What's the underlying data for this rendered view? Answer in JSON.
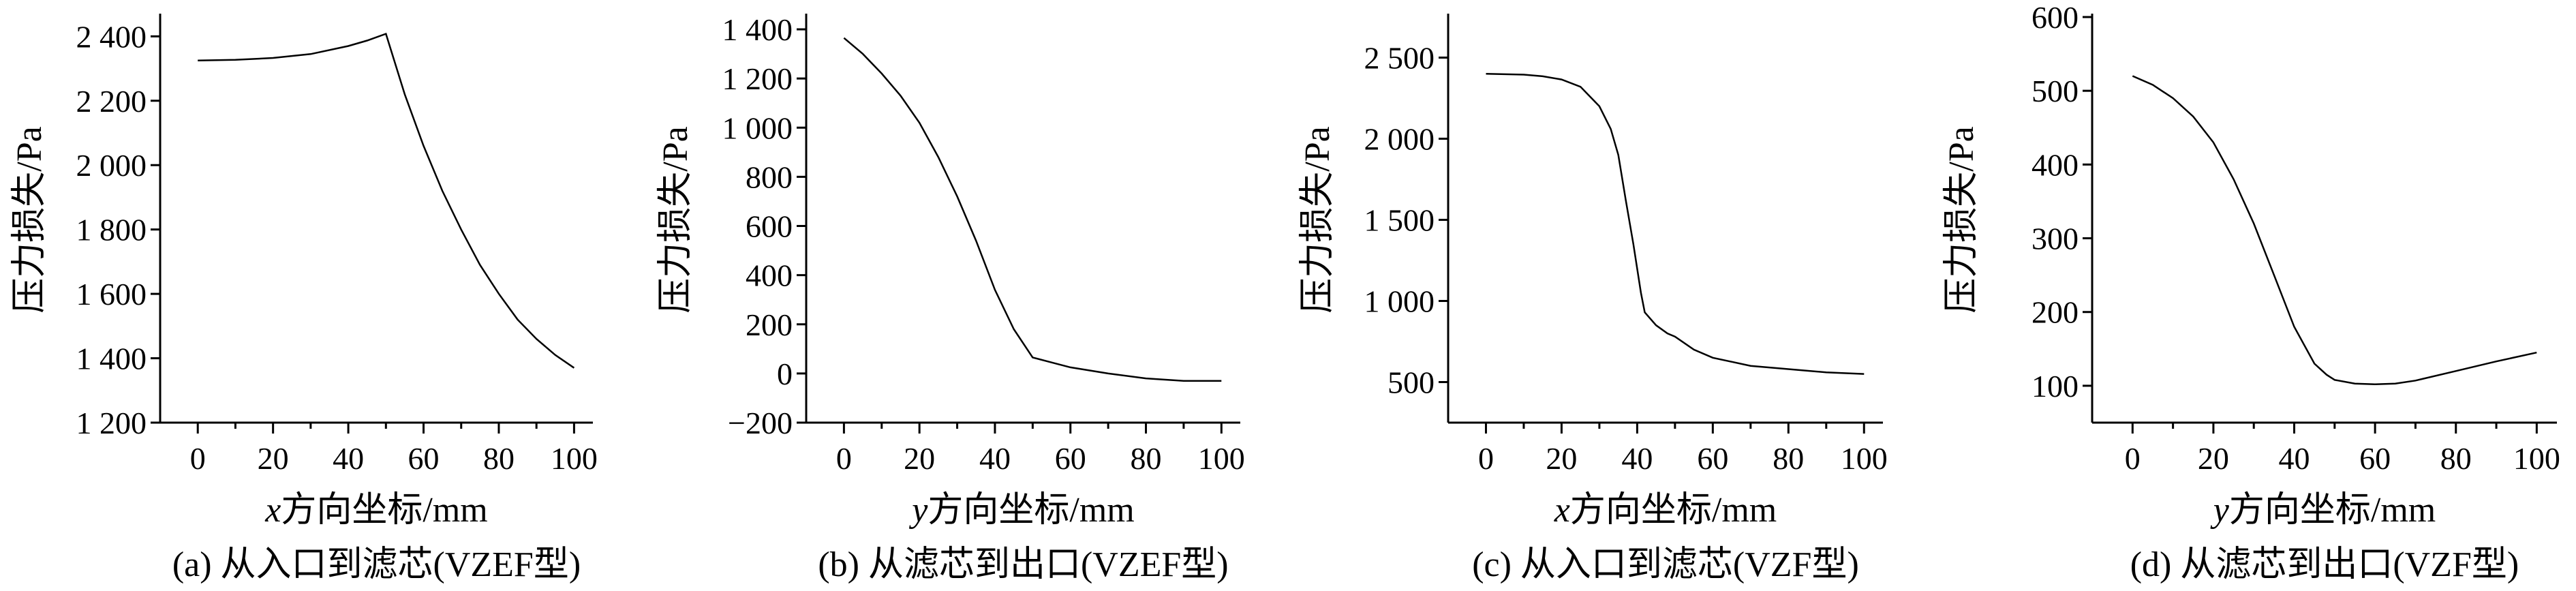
{
  "chart_data": [
    {
      "type": "line",
      "caption": "(a) 从入口到滤芯(VZEF型)",
      "xlabel_var": "x",
      "xlabel_rest": "方向坐标/mm",
      "ylabel": "压力损失/Pa",
      "xlim": [
        -10,
        105
      ],
      "ylim": [
        1200,
        2460
      ],
      "xticks": [
        0,
        20,
        40,
        60,
        80,
        100
      ],
      "yticks": [
        1200,
        1400,
        1600,
        1800,
        2000,
        2200,
        2400
      ],
      "xtick_labels": [
        "0",
        "20",
        "40",
        "60",
        "80",
        "100"
      ],
      "ytick_labels": [
        "1 200",
        "1 400",
        "1 600",
        "1 800",
        "2 000",
        "2 200",
        "2 400"
      ],
      "x": [
        0,
        10,
        20,
        30,
        40,
        45,
        50,
        55,
        60,
        65,
        70,
        75,
        80,
        85,
        90,
        95,
        100
      ],
      "y": [
        2325,
        2327,
        2333,
        2345,
        2370,
        2387,
        2408,
        2220,
        2060,
        1920,
        1800,
        1690,
        1600,
        1520,
        1460,
        1410,
        1370
      ]
    },
    {
      "type": "line",
      "caption": "(b) 从滤芯到出口(VZEF型)",
      "xlabel_var": "y",
      "xlabel_rest": "方向坐标/mm",
      "ylabel": "压力损失/Pa",
      "xlim": [
        -10,
        105
      ],
      "ylim": [
        -200,
        1450
      ],
      "xticks": [
        0,
        20,
        40,
        60,
        80,
        100
      ],
      "yticks": [
        -200,
        0,
        200,
        400,
        600,
        800,
        1000,
        1200,
        1400
      ],
      "xtick_labels": [
        "0",
        "20",
        "40",
        "60",
        "80",
        "100"
      ],
      "ytick_labels": [
        "−200",
        "0",
        "200",
        "400",
        "600",
        "800",
        "1 000",
        "1 200",
        "1 400"
      ],
      "x": [
        0,
        5,
        10,
        15,
        20,
        25,
        30,
        35,
        40,
        45,
        50,
        55,
        60,
        70,
        80,
        90,
        100
      ],
      "y": [
        1365,
        1300,
        1220,
        1130,
        1020,
        880,
        720,
        540,
        340,
        180,
        65,
        45,
        25,
        0,
        -20,
        -30,
        -30
      ]
    },
    {
      "type": "line",
      "caption": "(c) 从入口到滤芯(VZF型)",
      "xlabel_var": "x",
      "xlabel_rest": "方向坐标/mm",
      "ylabel": "压力损失/Pa",
      "xlim": [
        -10,
        105
      ],
      "ylim": [
        250,
        2750
      ],
      "xticks": [
        0,
        20,
        40,
        60,
        80,
        100
      ],
      "yticks": [
        500,
        1000,
        1500,
        2000,
        2500
      ],
      "xtick_labels": [
        "0",
        "20",
        "40",
        "60",
        "80",
        "100"
      ],
      "ytick_labels": [
        "500",
        "1 000",
        "1 500",
        "2 000",
        "2 500"
      ],
      "x": [
        0,
        10,
        15,
        20,
        25,
        30,
        33,
        35,
        37,
        39,
        41,
        42,
        45,
        48,
        50,
        55,
        60,
        70,
        80,
        90,
        100
      ],
      "y": [
        2400,
        2395,
        2385,
        2365,
        2320,
        2200,
        2060,
        1900,
        1620,
        1350,
        1050,
        930,
        850,
        800,
        780,
        700,
        650,
        600,
        580,
        560,
        550
      ]
    },
    {
      "type": "line",
      "caption": "(d) 从滤芯到出口(VZF型)",
      "xlabel_var": "y",
      "xlabel_rest": "方向坐标/mm",
      "ylabel": "压力损失/Pa",
      "xlim": [
        -10,
        105
      ],
      "ylim": [
        50,
        600
      ],
      "xticks": [
        0,
        20,
        40,
        60,
        80,
        100
      ],
      "yticks": [
        100,
        200,
        300,
        400,
        500,
        600
      ],
      "xtick_labels": [
        "0",
        "20",
        "40",
        "60",
        "80",
        "100"
      ],
      "ytick_labels": [
        "100",
        "200",
        "300",
        "400",
        "500",
        "600"
      ],
      "x": [
        0,
        5,
        10,
        15,
        20,
        25,
        30,
        35,
        40,
        45,
        48,
        50,
        55,
        60,
        65,
        70,
        80,
        90,
        100
      ],
      "y": [
        520,
        508,
        490,
        465,
        430,
        380,
        320,
        250,
        180,
        130,
        115,
        108,
        103,
        102,
        103,
        107,
        120,
        133,
        145
      ]
    }
  ]
}
